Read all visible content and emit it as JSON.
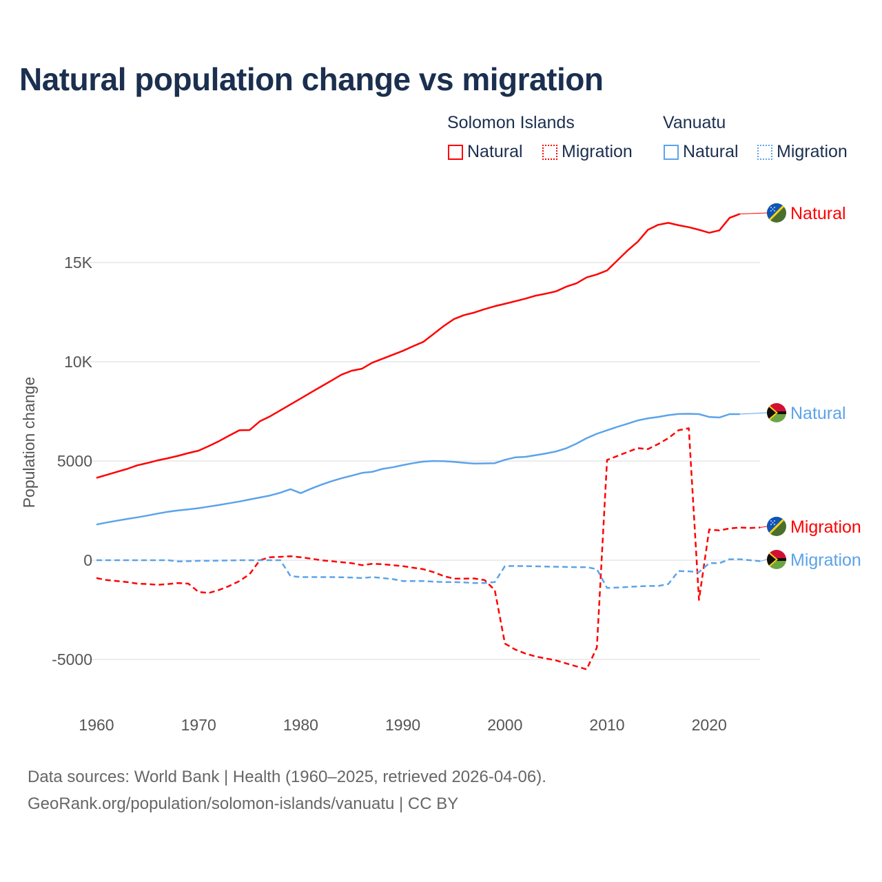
{
  "chart_data": {
    "type": "line",
    "title": "Natural population change vs migration",
    "ylabel": "Population change",
    "xlabel": "",
    "xlim": [
      1960,
      2025
    ],
    "ylim": [
      -7000,
      18000
    ],
    "grid": true,
    "x_ticks": [
      1960,
      1970,
      1980,
      1990,
      2000,
      2010,
      2020
    ],
    "y_ticks": [
      {
        "v": -5000,
        "label": "-5000"
      },
      {
        "v": 0,
        "label": "0"
      },
      {
        "v": 5000,
        "label": "5000"
      },
      {
        "v": 10000,
        "label": "10K"
      },
      {
        "v": 15000,
        "label": "15K"
      }
    ],
    "legend": {
      "placement": "top-right",
      "groups": [
        {
          "name": "Solomon Islands",
          "items": [
            "Natural",
            "Migration"
          ]
        },
        {
          "name": "Vanuatu",
          "items": [
            "Natural",
            "Migration"
          ]
        }
      ]
    },
    "series": [
      {
        "name": "Solomon Islands Natural",
        "end_label": "Natural",
        "country": "Solomon Islands",
        "color": "#ff0000",
        "dash": false,
        "start": 1960,
        "values": [
          4150,
          4300,
          4450,
          4600,
          4780,
          4900,
          5030,
          5140,
          5260,
          5400,
          5520,
          5750,
          6000,
          6280,
          6550,
          6560,
          7000,
          7250,
          7550,
          7850,
          8150,
          8450,
          8750,
          9050,
          9350,
          9550,
          9650,
          9950,
          10150,
          10350,
          10550,
          10780,
          11000,
          11400,
          11800,
          12150,
          12350,
          12480,
          12650,
          12800,
          12920,
          13050,
          13180,
          13330,
          13430,
          13550,
          13780,
          13950,
          14250,
          14400,
          14600,
          15100,
          15600,
          16050,
          16650,
          16900,
          17000,
          16880,
          16780,
          16650,
          16500,
          16620,
          17250,
          17450
        ]
      },
      {
        "name": "Vanuatu Natural",
        "end_label": "Natural",
        "country": "Vanuatu",
        "color": "#5ba3ea",
        "dash": false,
        "start": 1960,
        "values": [
          1800,
          1900,
          1990,
          2080,
          2160,
          2250,
          2350,
          2440,
          2510,
          2560,
          2620,
          2700,
          2780,
          2870,
          2960,
          3060,
          3160,
          3260,
          3400,
          3580,
          3380,
          3600,
          3800,
          3980,
          4130,
          4260,
          4400,
          4450,
          4600,
          4680,
          4790,
          4890,
          4970,
          5000,
          4990,
          4960,
          4910,
          4870,
          4880,
          4890,
          5060,
          5180,
          5210,
          5290,
          5380,
          5480,
          5640,
          5870,
          6150,
          6370,
          6550,
          6720,
          6880,
          7040,
          7150,
          7220,
          7310,
          7370,
          7380,
          7360,
          7220,
          7190,
          7360,
          7360
        ]
      },
      {
        "name": "Solomon Islands Migration",
        "end_label": "Migration",
        "country": "Solomon Islands",
        "color": "#ff0000",
        "dash": true,
        "start": 1960,
        "values": [
          -900,
          -1000,
          -1050,
          -1100,
          -1180,
          -1200,
          -1240,
          -1200,
          -1150,
          -1180,
          -1600,
          -1650,
          -1500,
          -1300,
          -1050,
          -700,
          0,
          150,
          170,
          200,
          150,
          80,
          0,
          -50,
          -100,
          -150,
          -250,
          -180,
          -200,
          -250,
          -300,
          -380,
          -450,
          -600,
          -800,
          -930,
          -930,
          -920,
          -1000,
          -1500,
          -4200,
          -4500,
          -4700,
          -4850,
          -4950,
          -5050,
          -5200,
          -5350,
          -5500,
          -4400,
          5050,
          5250,
          5450,
          5650,
          5600,
          5850,
          6150,
          6550,
          6650,
          -2000,
          1550,
          1500,
          1600,
          1650,
          1620,
          1650
        ]
      },
      {
        "name": "Vanuatu Migration",
        "end_label": "Migration",
        "country": "Vanuatu",
        "color": "#5ba3ea",
        "dash": true,
        "start": 1960,
        "values": [
          0,
          0,
          0,
          0,
          0,
          0,
          0,
          0,
          -60,
          -50,
          -30,
          -30,
          -20,
          -10,
          0,
          0,
          0,
          0,
          0,
          -800,
          -850,
          -850,
          -850,
          -850,
          -860,
          -870,
          -900,
          -850,
          -900,
          -950,
          -1050,
          -1050,
          -1050,
          -1080,
          -1100,
          -1100,
          -1120,
          -1150,
          -1150,
          -1100,
          -300,
          -290,
          -300,
          -310,
          -320,
          -330,
          -340,
          -350,
          -350,
          -450,
          -1400,
          -1380,
          -1350,
          -1320,
          -1300,
          -1300,
          -1200,
          -550,
          -560,
          -600,
          -150,
          -150,
          50,
          50,
          0,
          -50
        ]
      }
    ]
  },
  "footer": {
    "line1": "Data sources: World Bank | Health (1960–2025, retrieved 2026-04-06).",
    "line2": "GeoRank.org/population/solomon-islands/vanuatu | CC BY"
  }
}
